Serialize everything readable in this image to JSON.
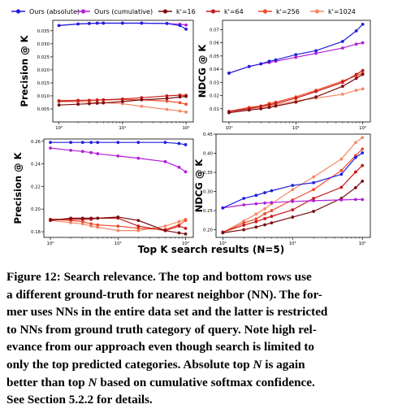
{
  "legend": [
    {
      "label": "Ours (absolute)",
      "color": "#1f1fdc"
    },
    {
      "label": "Ours (cumulative)",
      "color": "#b21fd8"
    },
    {
      "label": "k'=16",
      "color": "#7a0e10"
    },
    {
      "label": "k'=64",
      "color": "#c6191a"
    },
    {
      "label": "k'=256",
      "color": "#ee4d2b"
    },
    {
      "label": "k'=1024",
      "color": "#f58866"
    }
  ],
  "xlabel": "Top K search results (N=5)",
  "caption": {
    "line1": "Figure 12: Search relevance. The top and bottom rows use",
    "line2": "a different ground-truth for nearest neighbor (NN). The for-",
    "line3": "mer uses NNs in the entire data set and the latter is restricted",
    "line4": "to NNs from ground truth category of query. Note high rel-",
    "line5": "evance from our approach even though search is limited to",
    "line6": "only the top predicted categories. Absolute top",
    "line6_var": "N",
    "line6_end": "is again",
    "line7": "better than top",
    "line7_var": "N",
    "line7_end": "based on cumulative softmax confidence.",
    "line8": "See Section 5.2.2 for details."
  },
  "chart_data": [
    {
      "type": "line",
      "id": "precision_top",
      "ylabel": "Precision @ K",
      "xscale": "log",
      "xlim": [
        0.8,
        130
      ],
      "ylim": [
        0.0,
        0.039
      ],
      "yticks": [
        0.005,
        0.01,
        0.015,
        0.02,
        0.025,
        0.03,
        0.035
      ],
      "ytick_labels": [
        "0.005",
        "0.010",
        "0.015",
        "0.020",
        "0.025",
        "0.030",
        "0.035"
      ],
      "xticks": [
        1,
        10,
        100
      ],
      "xtick_labels": [
        "10⁰",
        "10¹",
        "10²"
      ],
      "x": [
        1,
        2,
        3,
        4,
        5,
        10,
        20,
        50,
        80,
        100
      ],
      "series": [
        {
          "name": "Ours (absolute)",
          "values": [
            0.037,
            0.0376,
            0.0378,
            0.0379,
            0.0379,
            0.0379,
            0.0379,
            0.0378,
            0.037,
            0.0356
          ]
        },
        {
          "name": "Ours (cumulative)",
          "values": [
            0.037,
            0.0376,
            0.0378,
            0.0379,
            0.0379,
            0.0379,
            0.0379,
            0.0378,
            0.0375,
            0.0372
          ]
        },
        {
          "name": "k'=16",
          "values": [
            0.0065,
            0.0068,
            0.007,
            0.0072,
            0.0073,
            0.0078,
            0.0085,
            0.009,
            0.0096,
            0.0098
          ]
        },
        {
          "name": "k'=64",
          "values": [
            0.008,
            0.0082,
            0.0083,
            0.0084,
            0.0085,
            0.0088,
            0.0093,
            0.01,
            0.0103,
            0.0102
          ]
        },
        {
          "name": "k'=256",
          "values": [
            0.0082,
            0.0083,
            0.0083,
            0.0084,
            0.0084,
            0.0086,
            0.0085,
            0.008,
            0.0074,
            0.0068
          ]
        },
        {
          "name": "k'=1024",
          "values": [
            0.0078,
            0.0077,
            0.0076,
            0.0075,
            0.0074,
            0.007,
            0.006,
            0.0048,
            0.0042,
            0.0038
          ]
        }
      ]
    },
    {
      "type": "line",
      "id": "ndcg_top",
      "ylabel": "NDCG @ K",
      "xscale": "log",
      "xlim": [
        0.8,
        130
      ],
      "ylim": [
        0.0,
        0.077
      ],
      "yticks": [
        0.01,
        0.02,
        0.03,
        0.04,
        0.05,
        0.06,
        0.07
      ],
      "ytick_labels": [
        "0.01",
        "0.02",
        "0.03",
        "0.04",
        "0.05",
        "0.06",
        "0.07"
      ],
      "xticks": [
        1,
        10,
        100
      ],
      "xtick_labels": [
        "10⁰",
        "10¹",
        "10²"
      ],
      "x": [
        1,
        2,
        3,
        4,
        5,
        10,
        20,
        50,
        80,
        100
      ],
      "series": [
        {
          "name": "Ours (absolute)",
          "values": [
            0.037,
            0.042,
            0.044,
            0.046,
            0.047,
            0.051,
            0.054,
            0.061,
            0.069,
            0.074
          ]
        },
        {
          "name": "Ours (cumulative)",
          "values": [
            0.037,
            0.042,
            0.044,
            0.045,
            0.046,
            0.049,
            0.052,
            0.056,
            0.059,
            0.06
          ]
        },
        {
          "name": "k'=16",
          "values": [
            0.007,
            0.009,
            0.01,
            0.011,
            0.012,
            0.015,
            0.019,
            0.027,
            0.033,
            0.036
          ]
        },
        {
          "name": "k'=64",
          "values": [
            0.008,
            0.01,
            0.012,
            0.013,
            0.014,
            0.018,
            0.023,
            0.03,
            0.036,
            0.039
          ]
        },
        {
          "name": "k'=256",
          "values": [
            0.008,
            0.011,
            0.012,
            0.014,
            0.015,
            0.019,
            0.024,
            0.031,
            0.035,
            0.037
          ]
        },
        {
          "name": "k'=1024",
          "values": [
            0.008,
            0.01,
            0.011,
            0.012,
            0.013,
            0.016,
            0.018,
            0.021,
            0.024,
            0.025
          ]
        }
      ]
    },
    {
      "type": "line",
      "id": "precision_bottom",
      "ylabel": "Precision @ K",
      "xscale": "log",
      "xlim": [
        0.8,
        130
      ],
      "ylim": [
        0.175,
        0.262
      ],
      "yticks": [
        0.18,
        0.2,
        0.22,
        0.24,
        0.26
      ],
      "ytick_labels": [
        "0.18",
        "0.20",
        "0.22",
        "0.24",
        "0.26"
      ],
      "xticks": [
        1,
        10,
        100
      ],
      "xtick_labels": [
        "10⁰",
        "10¹",
        "10²"
      ],
      "x": [
        1,
        2,
        3,
        4,
        5,
        10,
        20,
        50,
        80,
        100
      ],
      "series": [
        {
          "name": "Ours (absolute)",
          "values": [
            0.259,
            0.259,
            0.259,
            0.259,
            0.259,
            0.259,
            0.259,
            0.259,
            0.258,
            0.257
          ]
        },
        {
          "name": "Ours (cumulative)",
          "values": [
            0.254,
            0.252,
            0.251,
            0.25,
            0.249,
            0.247,
            0.245,
            0.242,
            0.237,
            0.233
          ]
        },
        {
          "name": "k'=16",
          "values": [
            0.19,
            0.192,
            0.192,
            0.192,
            0.192,
            0.193,
            0.19,
            0.181,
            0.179,
            0.178
          ]
        },
        {
          "name": "k'=64",
          "values": [
            0.191,
            0.191,
            0.191,
            0.191,
            0.192,
            0.192,
            0.185,
            0.181,
            0.185,
            0.183
          ]
        },
        {
          "name": "k'=256",
          "values": [
            0.191,
            0.19,
            0.189,
            0.187,
            0.186,
            0.185,
            0.183,
            0.182,
            0.186,
            0.19
          ]
        },
        {
          "name": "k'=1024",
          "values": [
            0.19,
            0.188,
            0.187,
            0.185,
            0.184,
            0.181,
            0.181,
            0.185,
            0.189,
            0.191
          ]
        }
      ]
    },
    {
      "type": "line",
      "id": "ndcg_bottom",
      "ylabel": "NDCG @ K",
      "xscale": "log",
      "xlim": [
        0.8,
        130
      ],
      "ylim": [
        0.18,
        0.45
      ],
      "yticks": [
        0.2,
        0.25,
        0.3,
        0.35,
        0.4,
        0.45
      ],
      "ytick_labels": [
        "0.20",
        "0.25",
        "0.30",
        "0.35",
        "0.40",
        "0.45"
      ],
      "xticks": [
        1,
        10,
        100
      ],
      "xtick_labels": [
        "10⁰",
        "10¹",
        "10²"
      ],
      "x": [
        1,
        2,
        3,
        4,
        5,
        10,
        20,
        50,
        80,
        100
      ],
      "series": [
        {
          "name": "Ours (absolute)",
          "values": [
            0.257,
            0.282,
            0.29,
            0.297,
            0.302,
            0.316,
            0.323,
            0.345,
            0.389,
            0.401
          ]
        },
        {
          "name": "Ours (cumulative)",
          "values": [
            0.257,
            0.265,
            0.268,
            0.27,
            0.271,
            0.274,
            0.276,
            0.278,
            0.279,
            0.279
          ]
        },
        {
          "name": "k'=16",
          "values": [
            0.192,
            0.2,
            0.207,
            0.213,
            0.218,
            0.233,
            0.248,
            0.282,
            0.31,
            0.327
          ]
        },
        {
          "name": "k'=64",
          "values": [
            0.194,
            0.212,
            0.221,
            0.229,
            0.235,
            0.252,
            0.282,
            0.311,
            0.351,
            0.368
          ]
        },
        {
          "name": "k'=256",
          "values": [
            0.193,
            0.218,
            0.228,
            0.242,
            0.25,
            0.278,
            0.305,
            0.355,
            0.394,
            0.411
          ]
        },
        {
          "name": "k'=1024",
          "values": [
            0.193,
            0.223,
            0.241,
            0.255,
            0.268,
            0.305,
            0.338,
            0.385,
            0.428,
            0.441
          ]
        }
      ]
    }
  ]
}
